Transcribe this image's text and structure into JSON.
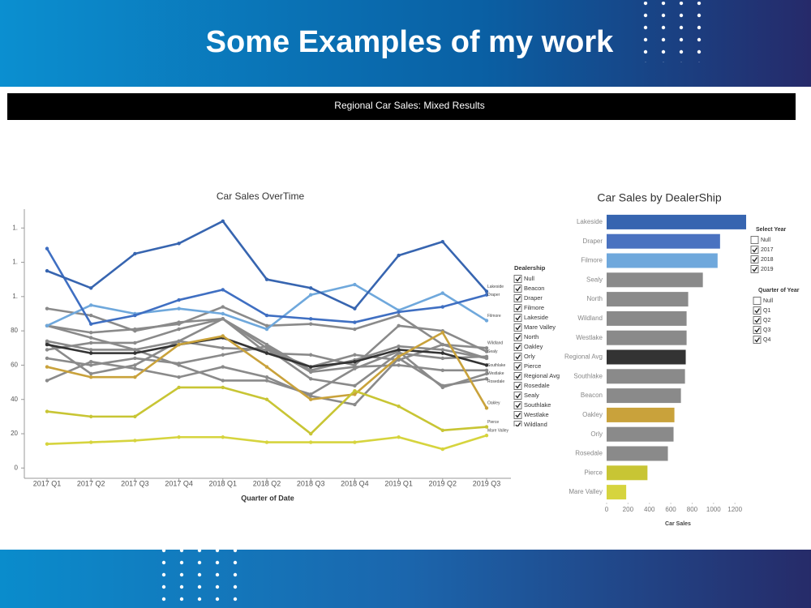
{
  "header": {
    "title": "Some Examples of my work"
  },
  "dashboard_title": "Regional Car Sales: Mixed Results",
  "chart_data": [
    {
      "type": "line",
      "title": "Car Sales OverTime",
      "x_label": "Quarter of Date",
      "categories": [
        "2017 Q1",
        "2017 Q2",
        "2017 Q3",
        "2017 Q4",
        "2018 Q1",
        "2018 Q2",
        "2018 Q3",
        "2018 Q4",
        "2019 Q1",
        "2019 Q2",
        "2019 Q3"
      ],
      "ylim": [
        -6,
        151
      ],
      "yticks": [
        0,
        20,
        40,
        60,
        80,
        {
          "value": 100,
          "label": "1."
        },
        {
          "value": 120,
          "label": "1."
        },
        {
          "value": 140,
          "label": "1."
        }
      ],
      "series": [
        {
          "name": "Beacon",
          "color": "#8a8a8a",
          "end_label": false,
          "values": [
            74,
            69,
            69,
            74,
            87,
            72,
            57,
            63,
            71,
            69,
            64
          ]
        },
        {
          "name": "North",
          "color": "#8a8a8a",
          "end_label": false,
          "values": [
            83,
            79,
            81,
            84,
            94,
            83,
            84,
            81,
            89,
            72,
            64
          ]
        },
        {
          "name": "Orly",
          "color": "#8a8a8a",
          "end_label": false,
          "values": [
            69,
            73,
            73,
            81,
            87,
            67,
            66,
            60,
            83,
            80,
            68
          ]
        },
        {
          "name": "Rosedale",
          "color": "#8a8a8a",
          "end_label": true,
          "values": [
            51,
            62,
            58,
            53,
            59,
            53,
            42,
            37,
            64,
            48,
            52
          ]
        },
        {
          "name": "Sealy",
          "color": "#8a8a8a",
          "end_label": true,
          "values": [
            93,
            89,
            80,
            85,
            87,
            70,
            52,
            48,
            67,
            64,
            65
          ]
        },
        {
          "name": "Southlake",
          "color": "#8a8a8a",
          "end_label": true,
          "values": [
            64,
            60,
            64,
            61,
            66,
            71,
            56,
            59,
            60,
            57,
            57
          ]
        },
        {
          "name": "Westlake",
          "color": "#8a8a8a",
          "end_label": true,
          "values": [
            83,
            76,
            69,
            60,
            51,
            51,
            43,
            58,
            68,
            47,
            55
          ]
        },
        {
          "name": "Wildland",
          "color": "#8a8a8a",
          "end_label": true,
          "values": [
            73,
            55,
            60,
            74,
            70,
            69,
            59,
            66,
            63,
            72,
            70
          ]
        },
        {
          "name": "Regional Avg",
          "color": "#333333",
          "end_label": false,
          "values": [
            72,
            67,
            67,
            72,
            76,
            67,
            59,
            62,
            69,
            67,
            60
          ]
        },
        {
          "name": "Oakley",
          "color": "#c9a23b",
          "end_label": true,
          "values": [
            59,
            53,
            53,
            72,
            77,
            59,
            40,
            43,
            65,
            79,
            35
          ]
        },
        {
          "name": "Pierce",
          "color": "#c8c534",
          "end_label": true,
          "values": [
            33,
            30,
            30,
            47,
            47,
            40,
            20,
            45,
            36,
            22,
            24
          ]
        },
        {
          "name": "Mare Valley",
          "color": "#d6d43e",
          "end_label": true,
          "values": [
            14,
            15,
            16,
            18,
            18,
            15,
            15,
            15,
            18,
            11,
            19
          ]
        },
        {
          "name": "Filmore",
          "color": "#6fa8dc",
          "end_label": true,
          "values": [
            83,
            95,
            90,
            93,
            90,
            81,
            101,
            107,
            92,
            102,
            86
          ]
        },
        {
          "name": "Draper",
          "color": "#3f6fc2",
          "end_label": true,
          "values": [
            128,
            84,
            89,
            98,
            104,
            89,
            87,
            85,
            91,
            94,
            101
          ]
        },
        {
          "name": "Lakeside",
          "color": "#3765b0",
          "end_label": true,
          "values": [
            115,
            105,
            125,
            131,
            144,
            110,
            105,
            93,
            124,
            132,
            103
          ]
        }
      ]
    },
    {
      "type": "hbar",
      "title": "Car Sales by DealerShip",
      "x_label": "Car Sales",
      "categories": [
        "Lakeside",
        "Draper",
        "Filmore",
        "Sealy",
        "North",
        "Wildland",
        "Westlake",
        "Regional Avg",
        "Southlake",
        "Beacon",
        "Oakley",
        "Orly",
        "Rosedale",
        "Pierce",
        "Mare Valley"
      ],
      "values": [
        1305,
        1061,
        1038,
        900,
        763,
        748,
        748,
        740,
        733,
        695,
        634,
        626,
        573,
        382,
        183
      ],
      "colors": [
        "#3765b0",
        "#4a72c0",
        "#6fa8dc",
        "#8a8a8a",
        "#8a8a8a",
        "#8a8a8a",
        "#8a8a8a",
        "#333333",
        "#8a8a8a",
        "#8a8a8a",
        "#c9a23b",
        "#8a8a8a",
        "#8a8a8a",
        "#c8c534",
        "#d6d43e"
      ],
      "xlim": [
        0,
        1320
      ],
      "xticks": [
        0,
        200,
        400,
        600,
        800,
        1000,
        1200
      ]
    }
  ],
  "filters": [
    {
      "title": "Dealership",
      "items": [
        "Null",
        "Beacon",
        "Draper",
        "Filmore",
        "Lakeside",
        "Mare Valley",
        "North",
        "Oakley",
        "Orly",
        "Pierce",
        "Regional Avg",
        "Rosedale",
        "Sealy",
        "Southlake",
        "Westlake",
        "Wildland"
      ],
      "checked": [
        true,
        true,
        true,
        true,
        true,
        true,
        true,
        true,
        true,
        true,
        true,
        true,
        true,
        true,
        true,
        true
      ]
    },
    {
      "title": "Select Year",
      "items": [
        "Null",
        "2017",
        "2018",
        "2019"
      ],
      "checked": [
        false,
        true,
        true,
        true
      ]
    },
    {
      "title": "Quarter of Year",
      "items": [
        "Null",
        "Q1",
        "Q2",
        "Q3",
        "Q4"
      ],
      "checked": [
        false,
        true,
        true,
        true,
        true
      ]
    }
  ]
}
